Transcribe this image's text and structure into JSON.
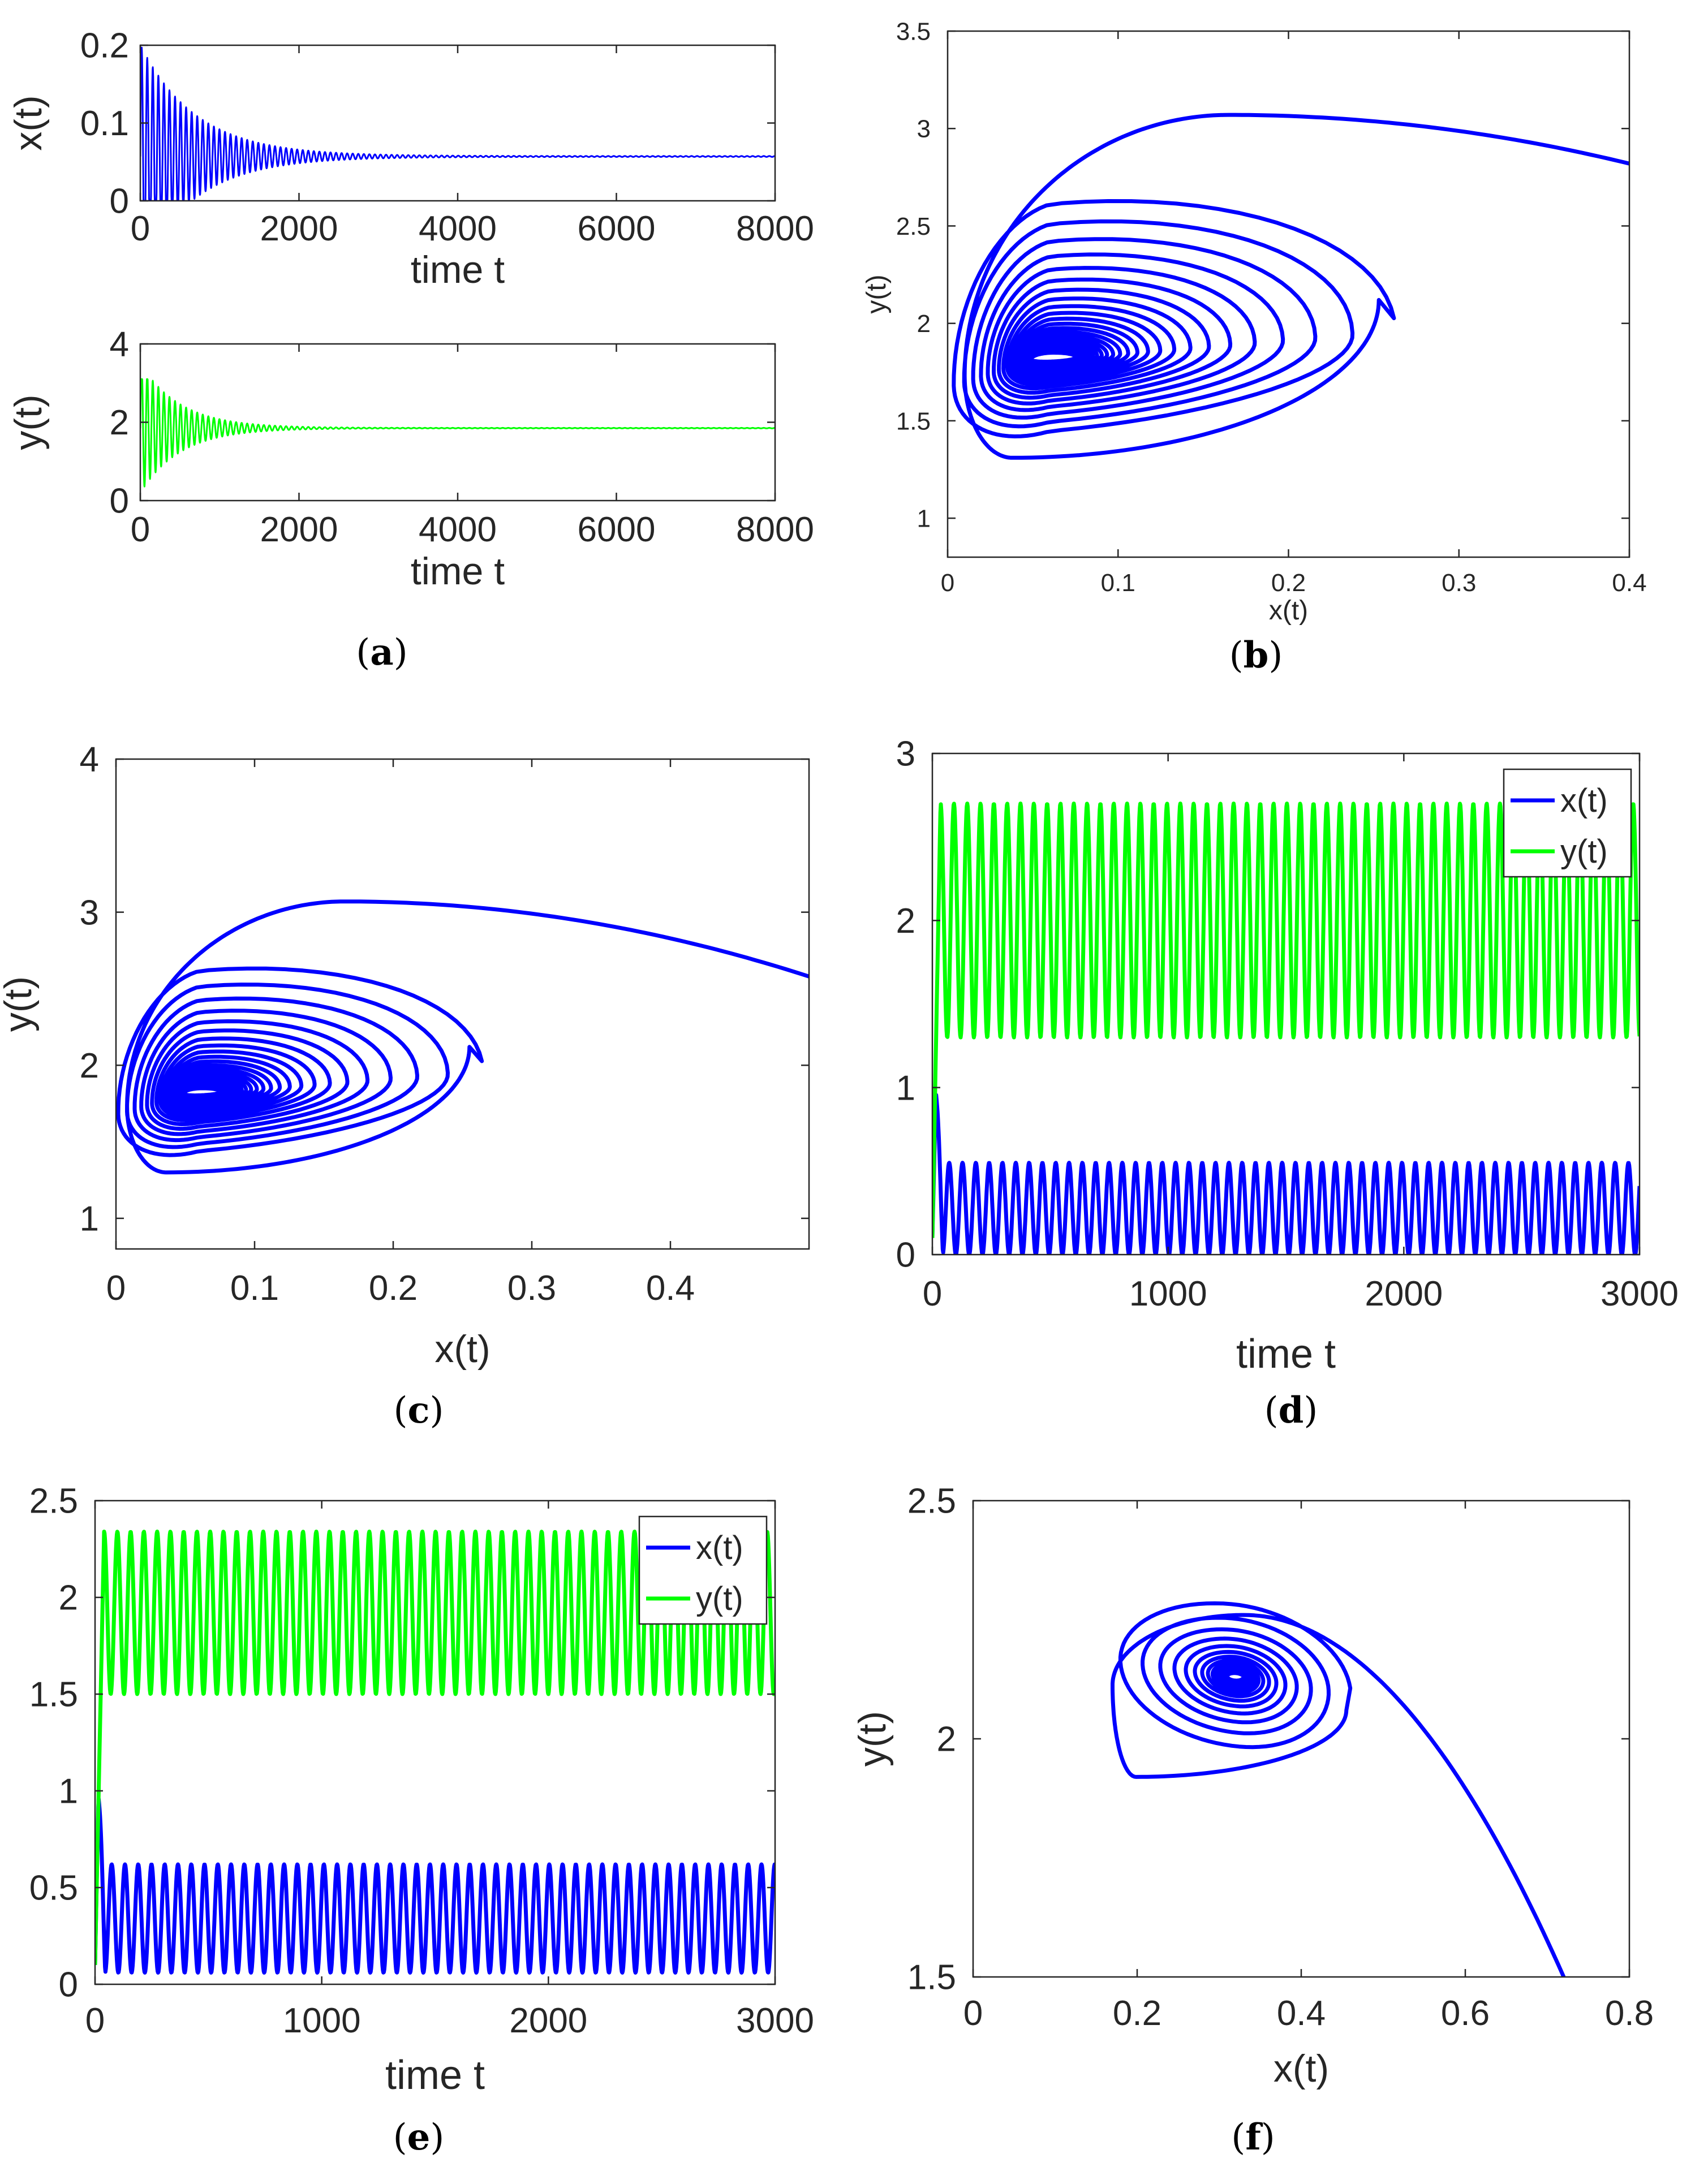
{
  "colors": {
    "x_series": "#0000ff",
    "y_series": "#00ff00",
    "axis": "#262626"
  },
  "chart_data": [
    {
      "id": "a1",
      "panel": "(a)",
      "type": "line",
      "title": "",
      "xlabel": "time t",
      "ylabel": "x(t)",
      "xlim": [
        0,
        8000
      ],
      "ylim": [
        0,
        0.2
      ],
      "xticks": [
        0,
        2000,
        4000,
        6000,
        8000
      ],
      "xticklabels": [
        "0",
        "2000",
        "4000",
        "6000",
        "8000"
      ],
      "yticks": [
        0,
        0.1,
        0.2
      ],
      "yticklabels": [
        "0",
        "0.1",
        "0.2"
      ],
      "series": [
        {
          "name": "x(t)",
          "color": "#0000ff",
          "kind": "damped_oscillation",
          "params": {
            "t_end": 8000,
            "equilibrium": 0.057,
            "initial_low": 0.0,
            "initial_high": 0.2,
            "decay_time": 700,
            "period": 70
          }
        }
      ]
    },
    {
      "id": "a2",
      "panel": "",
      "type": "line",
      "title": "",
      "xlabel": "time t",
      "ylabel": "y(t)",
      "xlim": [
        0,
        8000
      ],
      "ylim": [
        0,
        4
      ],
      "xticks": [
        0,
        2000,
        4000,
        6000,
        8000
      ],
      "xticklabels": [
        "0",
        "2000",
        "4000",
        "6000",
        "8000"
      ],
      "yticks": [
        0,
        2,
        4
      ],
      "yticklabels": [
        "0",
        "2",
        "4"
      ],
      "series": [
        {
          "name": "y(t)",
          "color": "#00ff00",
          "kind": "damped_oscillation",
          "params": {
            "t_end": 8000,
            "equilibrium": 1.85,
            "initial_low": 0.2,
            "initial_high": 3.1,
            "decay_time": 500,
            "period": 70
          }
        }
      ]
    },
    {
      "id": "b",
      "panel": "(b)",
      "type": "line",
      "title": "",
      "xlabel": "x(t)",
      "ylabel": "y(t)",
      "xlim": [
        0,
        0.4
      ],
      "ylim": [
        0.8,
        3.5
      ],
      "xticks": [
        0,
        0.1,
        0.2,
        0.3,
        0.4
      ],
      "xticklabels": [
        "0",
        "0.1",
        "0.2",
        "0.3",
        "0.4"
      ],
      "yticks": [
        1,
        1.5,
        2,
        2.5,
        3,
        3.5
      ],
      "yticklabels": [
        "1",
        "1.5",
        "2",
        "2.5",
        "3",
        "3.5"
      ],
      "series": [
        {
          "name": "orbit",
          "color": "#0000ff",
          "kind": "inward_spiral",
          "params": {
            "start": [
              0.4,
              2.82
            ],
            "peak": [
              0.165,
              3.07
            ],
            "left_x": 0.01,
            "bottom_y": 1.31,
            "center": [
              0.06,
              1.82
            ],
            "first_right": [
              0.253,
              2.12
            ],
            "decay": 0.87,
            "loops": 26,
            "hole": [
              0.015,
              0.075
            ]
          }
        }
      ]
    },
    {
      "id": "c",
      "panel": "(c)",
      "type": "line",
      "title": "",
      "xlabel": "x(t)",
      "ylabel": "y(t)",
      "xlim": [
        0,
        0.5
      ],
      "ylim": [
        0.8,
        4
      ],
      "xticks": [
        0,
        0.1,
        0.2,
        0.3,
        0.4
      ],
      "xticklabels": [
        "0",
        "0.1",
        "0.2",
        "0.3",
        "0.4"
      ],
      "yticks": [
        1,
        2,
        3,
        4
      ],
      "yticklabels": [
        "1",
        "2",
        "3",
        "4"
      ],
      "series": [
        {
          "name": "orbit",
          "color": "#0000ff",
          "kind": "inward_spiral",
          "params": {
            "start": [
              0.5,
              2.58
            ],
            "peak": [
              0.165,
              3.07
            ],
            "left_x": 0.008,
            "bottom_y": 1.3,
            "center": [
              0.06,
              1.82
            ],
            "first_right": [
              0.255,
              2.12
            ],
            "decay": 0.87,
            "loops": 26,
            "hole": [
              0.015,
              0.075
            ]
          }
        }
      ]
    },
    {
      "id": "d",
      "panel": "(d)",
      "type": "line",
      "title": "",
      "xlabel": "time t",
      "ylabel": "",
      "xlim": [
        0,
        3000
      ],
      "ylim": [
        0,
        3
      ],
      "xticks": [
        0,
        1000,
        2000,
        3000
      ],
      "xticklabels": [
        "0",
        "1000",
        "2000",
        "3000"
      ],
      "yticks": [
        0,
        1,
        2,
        3
      ],
      "yticklabels": [
        "0",
        "1",
        "2",
        "3"
      ],
      "legend": {
        "position": "top-right",
        "entries": [
          "x(t)",
          "y(t)"
        ]
      },
      "series": [
        {
          "name": "x(t)",
          "color": "#0000ff",
          "kind": "periodic",
          "params": {
            "t_end": 3000,
            "min": 0.0,
            "max": 0.55,
            "period": 56.5,
            "init_peak": 0.97,
            "init_t": 15
          }
        },
        {
          "name": "y(t)",
          "color": "#00ff00",
          "kind": "periodic",
          "params": {
            "t_end": 3000,
            "min": 1.3,
            "max": 2.7,
            "period": 56.5,
            "init_start": 0.1,
            "init_peak": 2.72,
            "init_t": 35
          }
        }
      ]
    },
    {
      "id": "e",
      "panel": "(e)",
      "type": "line",
      "title": "",
      "xlabel": "time t",
      "ylabel": "",
      "xlim": [
        0,
        3000
      ],
      "ylim": [
        0,
        2.5
      ],
      "xticks": [
        0,
        1000,
        2000,
        3000
      ],
      "xticklabels": [
        "0",
        "1000",
        "2000",
        "3000"
      ],
      "yticks": [
        0,
        0.5,
        1,
        1.5,
        2,
        2.5
      ],
      "yticklabels": [
        "0",
        "0.5",
        "1",
        "1.5",
        "2",
        "2.5"
      ],
      "legend": {
        "position": "top-right",
        "entries": [
          "x(t)",
          "y(t)"
        ]
      },
      "series": [
        {
          "name": "x(t)",
          "color": "#0000ff",
          "kind": "periodic",
          "params": {
            "t_end": 3000,
            "min": 0.06,
            "max": 0.62,
            "period": 58.5,
            "init_peak": 0.97,
            "init_t": 15
          }
        },
        {
          "name": "y(t)",
          "color": "#00ff00",
          "kind": "periodic",
          "params": {
            "t_end": 3000,
            "min": 1.5,
            "max": 2.34,
            "period": 58.5,
            "init_start": 0.1,
            "init_peak": 2.34,
            "init_t": 40
          }
        }
      ]
    },
    {
      "id": "f",
      "panel": "(f)",
      "type": "line",
      "title": "",
      "xlabel": "x(t)",
      "ylabel": "y(t)",
      "xlim": [
        0,
        0.8
      ],
      "ylim": [
        1.5,
        2.5
      ],
      "xticks": [
        0,
        0.2,
        0.4,
        0.6,
        0.8
      ],
      "xticklabels": [
        "0",
        "0.2",
        "0.4",
        "0.6",
        "0.8"
      ],
      "yticks": [
        1.5,
        2,
        2.5
      ],
      "yticklabels": [
        "1.5",
        "2",
        "2.5"
      ],
      "series": [
        {
          "name": "orbit",
          "color": "#0000ff",
          "kind": "inward_spiral",
          "params": {
            "start": [
              0.72,
              1.5
            ],
            "peak": [
              0.33,
              2.26
            ],
            "left_x": 0.17,
            "bottom_y": 1.92,
            "center": [
              0.32,
              2.13
            ],
            "first_right": [
              0.455,
              2.06
            ],
            "decay": 0.8,
            "loops": 16,
            "hole": [
              0.0,
              0.0
            ]
          }
        }
      ]
    }
  ]
}
